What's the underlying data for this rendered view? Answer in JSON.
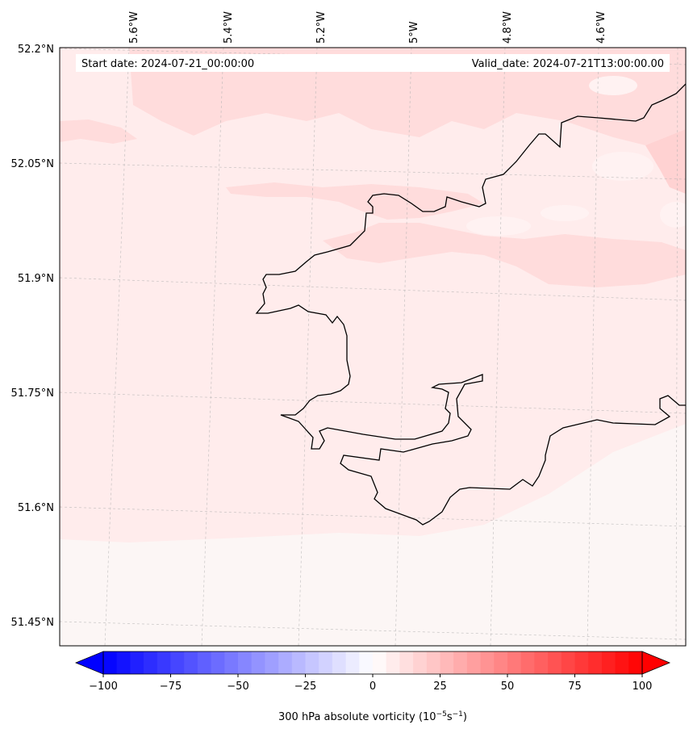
{
  "map": {
    "start_date_label": "Start date: 2024-07-21_00:00:00",
    "valid_date_label": "Valid_date: 2024-07-21T13:00:00.00",
    "lon_ticks": [
      "5.6°W",
      "5.4°W",
      "5.2°W",
      "5°W",
      "4.8°W",
      "4.6°W"
    ],
    "lat_ticks": [
      "52.2°N",
      "52.05°N",
      "51.9°N",
      "51.75°N",
      "51.6°N",
      "51.45°N"
    ],
    "field": "300 hPa absolute vorticity",
    "colors": {
      "field_low": "#fef7f7",
      "field_mid": "#ffebeb",
      "field_high": "#ffdcdc",
      "field_white": "#fbf6f5",
      "coastline": "#000000",
      "grid": "#b0b0b0"
    }
  },
  "colorbar": {
    "tick_labels": [
      "−100",
      "−75",
      "−50",
      "−25",
      "0",
      "25",
      "50",
      "75",
      "100"
    ],
    "tick_values": [
      -100,
      -75,
      -50,
      -25,
      0,
      25,
      50,
      75,
      100
    ],
    "range": [
      -100,
      100
    ],
    "label_main": "300 hPa absolute vorticity (10",
    "label_exp1": "−5",
    "label_mid": "s",
    "label_exp2": "−1",
    "label_end": ")",
    "negative_color": "#0000ff",
    "positive_color": "#ff0000"
  }
}
